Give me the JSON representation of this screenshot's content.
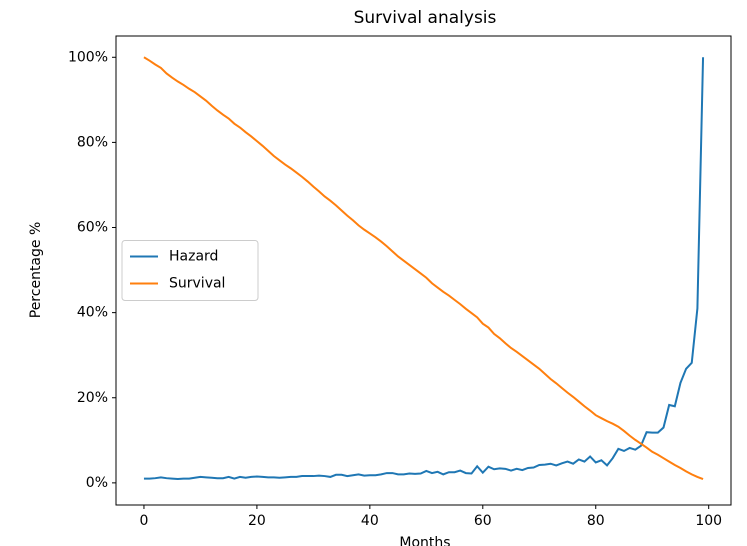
{
  "chart_data": {
    "type": "line",
    "title": "Survival analysis",
    "xlabel": "Months",
    "ylabel": "Percentage %",
    "x": [
      0,
      1,
      2,
      3,
      4,
      5,
      6,
      7,
      8,
      9,
      10,
      11,
      12,
      13,
      14,
      15,
      16,
      17,
      18,
      19,
      20,
      21,
      22,
      23,
      24,
      25,
      26,
      27,
      28,
      29,
      30,
      31,
      32,
      33,
      34,
      35,
      36,
      37,
      38,
      39,
      40,
      41,
      42,
      43,
      44,
      45,
      46,
      47,
      48,
      49,
      50,
      51,
      52,
      53,
      54,
      55,
      56,
      57,
      58,
      59,
      60,
      61,
      62,
      63,
      64,
      65,
      66,
      67,
      68,
      69,
      70,
      71,
      72,
      73,
      74,
      75,
      76,
      77,
      78,
      79,
      80,
      81,
      82,
      83,
      84,
      85,
      86,
      87,
      88,
      89,
      90,
      91,
      92,
      93,
      94,
      95,
      96,
      97,
      98,
      99
    ],
    "series": [
      {
        "name": "Hazard",
        "color": "#1f77b4",
        "values": [
          1,
          1,
          1.1,
          1.3,
          1.1,
          1,
          0.9,
          1,
          1,
          1.2,
          1.4,
          1.3,
          1.2,
          1.1,
          1.1,
          1.4,
          1,
          1.4,
          1.2,
          1.4,
          1.5,
          1.4,
          1.3,
          1.3,
          1.2,
          1.3,
          1.4,
          1.4,
          1.6,
          1.6,
          1.6,
          1.7,
          1.6,
          1.4,
          1.9,
          1.9,
          1.6,
          1.8,
          2,
          1.7,
          1.8,
          1.8,
          2,
          2.3,
          2.3,
          2,
          2,
          2.2,
          2.1,
          2.2,
          2.8,
          2.3,
          2.6,
          2,
          2.5,
          2.5,
          2.9,
          2.3,
          2.2,
          3.9,
          2.4,
          3.8,
          3.2,
          3.4,
          3.3,
          2.9,
          3.3,
          3,
          3.5,
          3.6,
          4.2,
          4.3,
          4.5,
          4.1,
          4.6,
          5,
          4.5,
          5.5,
          5,
          6.2,
          4.8,
          5.3,
          4.1,
          5.8,
          8,
          7.5,
          8.2,
          7.8,
          8.7,
          11.9,
          11.8,
          11.8,
          13,
          18.3,
          18,
          23.5,
          26.8,
          28.2,
          41,
          100
        ]
      },
      {
        "name": "Survival",
        "color": "#ff7f0e",
        "values": [
          100,
          99.2,
          98.3,
          97.5,
          96.2,
          95.2,
          94.3,
          93.5,
          92.6,
          91.8,
          90.8,
          89.8,
          88.6,
          87.5,
          86.5,
          85.6,
          84.4,
          83.5,
          82.4,
          81.4,
          80.3,
          79.2,
          78,
          76.8,
          75.8,
          74.8,
          73.9,
          72.9,
          71.9,
          70.8,
          69.6,
          68.5,
          67.3,
          66.3,
          65.2,
          64,
          62.8,
          61.7,
          60.5,
          59.5,
          58.6,
          57.7,
          56.7,
          55.6,
          54.4,
          53.2,
          52.2,
          51.2,
          50.2,
          49.2,
          48.2,
          46.9,
          45.9,
          44.9,
          44,
          43,
          42,
          40.9,
          39.9,
          38.9,
          37.4,
          36.5,
          35,
          34,
          32.8,
          31.7,
          30.8,
          29.8,
          28.8,
          27.8,
          26.8,
          25.6,
          24.4,
          23.4,
          22.3,
          21.2,
          20.2,
          19.1,
          18,
          17,
          15.9,
          15.2,
          14.5,
          13.9,
          13.2,
          12.2,
          11.1,
          10.1,
          9.2,
          8.3,
          7.3,
          6.6,
          5.8,
          5,
          4.2,
          3.5,
          2.7,
          2,
          1.4,
          0.9
        ]
      }
    ],
    "xlim": [
      -4.95,
      103.95
    ],
    "xticks": [
      0,
      20,
      40,
      60,
      80,
      100
    ],
    "ylim": [
      -5.2,
      105
    ],
    "yticks": [
      {
        "value": 0,
        "label": "0%"
      },
      {
        "value": 20,
        "label": "20%"
      },
      {
        "value": 40,
        "label": "40%"
      },
      {
        "value": 60,
        "label": "60%"
      },
      {
        "value": 80,
        "label": "80%"
      },
      {
        "value": 100,
        "label": "100%"
      }
    ],
    "legend": "center left"
  }
}
